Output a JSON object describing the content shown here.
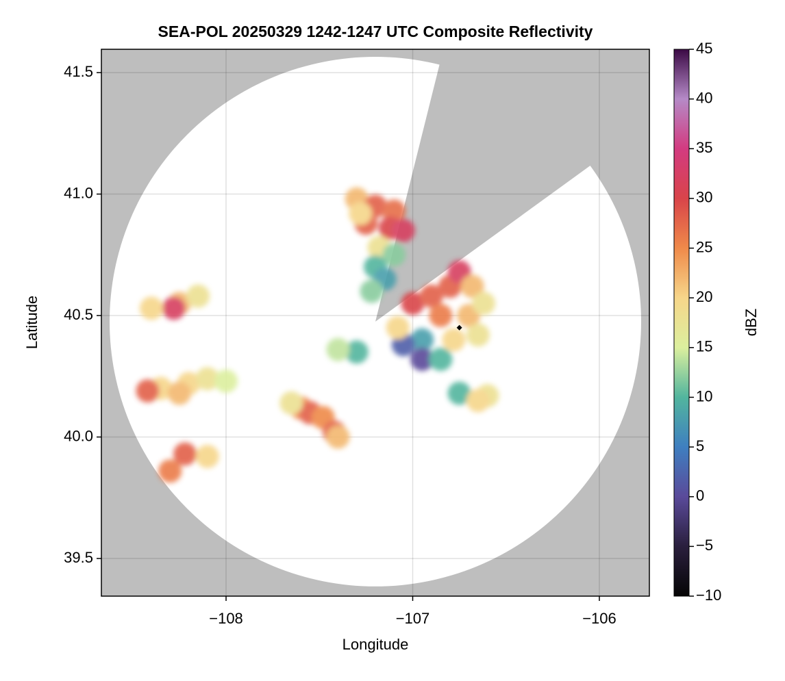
{
  "chart_data": {
    "type": "radar",
    "title": "SEA-POL 20250329 1242-1247 UTC Composite Reflectivity",
    "xlabel": "Longitude",
    "ylabel": "Latitude",
    "colorbar_label": "dBZ",
    "xlim": [
      -108.668,
      -105.732
    ],
    "ylim": [
      39.345,
      41.596
    ],
    "xticks": [
      {
        "value": -108,
        "label": "−108"
      },
      {
        "value": -107,
        "label": "−107"
      },
      {
        "value": -106,
        "label": "−106"
      }
    ],
    "yticks": [
      39.5,
      {
        "value": 40,
        "label": "40.0"
      },
      40.5,
      {
        "value": 41,
        "label": "41.0"
      },
      41.5
    ],
    "grid": true,
    "background": "#bebebe",
    "coverage": {
      "center": [
        -107.2,
        40.475
      ],
      "radius": [
        1.424,
        1.09
      ],
      "blocked_azimuths": [
        14,
        54
      ],
      "color": "#ffffff"
    },
    "clim": [
      -10,
      45
    ],
    "cticks": [
      {
        "value": -10,
        "label": "−10"
      },
      {
        "value": -5,
        "label": "−5"
      },
      0,
      5,
      10,
      15,
      20,
      25,
      30,
      35,
      40,
      45
    ],
    "colormap": [
      "#050505",
      "#2a1f3d",
      "#5a4a9a",
      "#3f7fc0",
      "#52b59e",
      "#dcef9e",
      "#f6d68a",
      "#ef8a4a",
      "#d9444a",
      "#d33b80",
      "#b58ac7",
      "#3b0a45"
    ],
    "x": [
      -107.3,
      -107.2,
      -107.1,
      -107.25,
      -107.12,
      -107.05,
      -107.18,
      -107.1,
      -107.2,
      -107.15,
      -107.22,
      -107.28,
      -107.0,
      -106.9,
      -106.8,
      -106.75,
      -106.68,
      -106.85,
      -106.7,
      -106.65,
      -106.78,
      -106.95,
      -107.05,
      -106.95,
      -107.08,
      -106.62,
      -106.85,
      -108.25,
      -108.28,
      -108.4,
      -108.15,
      -108.35,
      -108.42,
      -108.2,
      -108.1,
      -108.0,
      -108.25,
      -107.6,
      -107.55,
      -107.48,
      -107.42,
      -107.65,
      -107.4,
      -108.22,
      -108.1,
      -108.3,
      -107.3,
      -107.4,
      -106.75,
      -106.6,
      -106.65
    ],
    "y": [
      40.98,
      40.95,
      40.93,
      40.88,
      40.86,
      40.85,
      40.78,
      40.75,
      40.7,
      40.65,
      40.6,
      40.92,
      40.55,
      40.58,
      40.62,
      40.68,
      40.62,
      40.5,
      40.5,
      40.42,
      40.4,
      40.4,
      40.38,
      40.32,
      40.45,
      40.55,
      40.32,
      40.55,
      40.53,
      40.53,
      40.58,
      40.2,
      40.19,
      40.22,
      40.24,
      40.23,
      40.18,
      40.12,
      40.1,
      40.08,
      40.02,
      40.14,
      40.0,
      39.93,
      39.92,
      39.86,
      40.35,
      40.36,
      40.18,
      40.17,
      40.15
    ],
    "values": [
      22,
      28,
      27,
      28,
      30,
      32,
      18,
      12,
      10,
      8,
      12,
      20,
      30,
      28,
      28,
      32,
      22,
      26,
      22,
      18,
      20,
      8,
      2,
      0,
      20,
      18,
      10,
      22,
      32,
      20,
      18,
      20,
      28,
      20,
      18,
      15,
      22,
      25,
      28,
      25,
      28,
      18,
      22,
      28,
      20,
      26,
      10,
      14,
      10,
      18,
      20
    ],
    "site": {
      "x": -106.75,
      "y": 40.45
    }
  }
}
